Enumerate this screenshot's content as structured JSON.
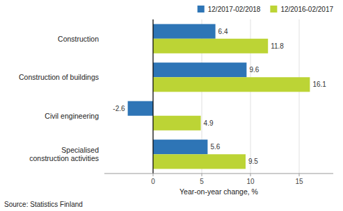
{
  "chart_data": {
    "type": "bar",
    "orientation": "horizontal",
    "categories": [
      "Construction",
      "Construction of buildings",
      "Civil engineering",
      "Specialised\nconstruction activities"
    ],
    "series": [
      {
        "name": "12/2017-02/2018",
        "color": "#2e75b6",
        "values": [
          6.4,
          9.6,
          -2.6,
          5.6
        ]
      },
      {
        "name": "12/2016-02/2017",
        "color": "#bcd435",
        "values": [
          11.8,
          16.1,
          4.9,
          9.5
        ]
      }
    ],
    "xlabel": "Year-on-year change, %",
    "source": "Source: Statistics Finland",
    "xlim": [
      -5,
      18.5
    ],
    "xticks": [
      0,
      5,
      10,
      15
    ],
    "grid": true,
    "legend": "upper right",
    "data_labels": true
  }
}
